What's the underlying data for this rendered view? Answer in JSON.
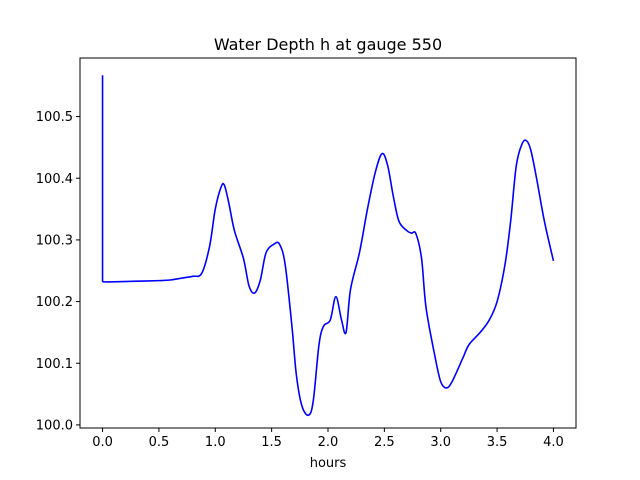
{
  "chart_data": {
    "type": "line",
    "title": "Water Depth h at gauge 550",
    "xlabel": "hours",
    "ylabel": "",
    "xlim": [
      -0.2,
      4.2
    ],
    "ylim": [
      99.995,
      100.595
    ],
    "x_ticks": [
      0.0,
      0.5,
      1.0,
      1.5,
      2.0,
      2.5,
      3.0,
      3.5,
      4.0
    ],
    "x_tick_labels": [
      "0.0",
      "0.5",
      "1.0",
      "1.5",
      "2.0",
      "2.5",
      "3.0",
      "3.5",
      "4.0"
    ],
    "y_ticks": [
      100.0,
      100.1,
      100.2,
      100.3,
      100.4,
      100.5
    ],
    "y_tick_labels": [
      "100.0",
      "100.1",
      "100.2",
      "100.3",
      "100.4",
      "100.5"
    ],
    "grid": false,
    "legend": "none",
    "series": [
      {
        "color": "#0000ff",
        "points": [
          [
            0.0,
            100.567
          ],
          [
            0.0,
            100.232
          ],
          [
            0.1,
            100.232
          ],
          [
            0.3,
            100.233
          ],
          [
            0.5,
            100.234
          ],
          [
            0.6,
            100.235
          ],
          [
            0.7,
            100.238
          ],
          [
            0.8,
            100.241
          ],
          [
            0.88,
            100.246
          ],
          [
            0.95,
            100.29
          ],
          [
            1.0,
            100.35
          ],
          [
            1.05,
            100.385
          ],
          [
            1.08,
            100.389
          ],
          [
            1.12,
            100.36
          ],
          [
            1.17,
            100.315
          ],
          [
            1.25,
            100.27
          ],
          [
            1.3,
            100.225
          ],
          [
            1.35,
            100.214
          ],
          [
            1.4,
            100.235
          ],
          [
            1.45,
            100.279
          ],
          [
            1.52,
            100.293
          ],
          [
            1.57,
            100.293
          ],
          [
            1.62,
            100.26
          ],
          [
            1.68,
            100.16
          ],
          [
            1.72,
            100.08
          ],
          [
            1.77,
            100.03
          ],
          [
            1.83,
            100.016
          ],
          [
            1.87,
            100.04
          ],
          [
            1.92,
            100.13
          ],
          [
            1.96,
            100.16
          ],
          [
            2.02,
            100.17
          ],
          [
            2.07,
            100.208
          ],
          [
            2.12,
            100.17
          ],
          [
            2.16,
            100.15
          ],
          [
            2.2,
            100.22
          ],
          [
            2.28,
            100.28
          ],
          [
            2.35,
            100.35
          ],
          [
            2.42,
            100.41
          ],
          [
            2.48,
            100.44
          ],
          [
            2.53,
            100.42
          ],
          [
            2.58,
            100.37
          ],
          [
            2.63,
            100.33
          ],
          [
            2.7,
            100.315
          ],
          [
            2.74,
            100.311
          ],
          [
            2.78,
            100.31
          ],
          [
            2.83,
            100.27
          ],
          [
            2.87,
            100.19
          ],
          [
            2.95,
            100.11
          ],
          [
            3.0,
            100.07
          ],
          [
            3.05,
            100.06
          ],
          [
            3.1,
            100.07
          ],
          [
            3.2,
            100.11
          ],
          [
            3.25,
            100.13
          ],
          [
            3.35,
            100.15
          ],
          [
            3.43,
            100.17
          ],
          [
            3.5,
            100.2
          ],
          [
            3.57,
            100.26
          ],
          [
            3.62,
            100.33
          ],
          [
            3.67,
            100.42
          ],
          [
            3.72,
            100.455
          ],
          [
            3.76,
            100.461
          ],
          [
            3.8,
            100.445
          ],
          [
            3.85,
            100.4
          ],
          [
            3.92,
            100.33
          ],
          [
            4.0,
            100.266
          ]
        ]
      }
    ]
  }
}
